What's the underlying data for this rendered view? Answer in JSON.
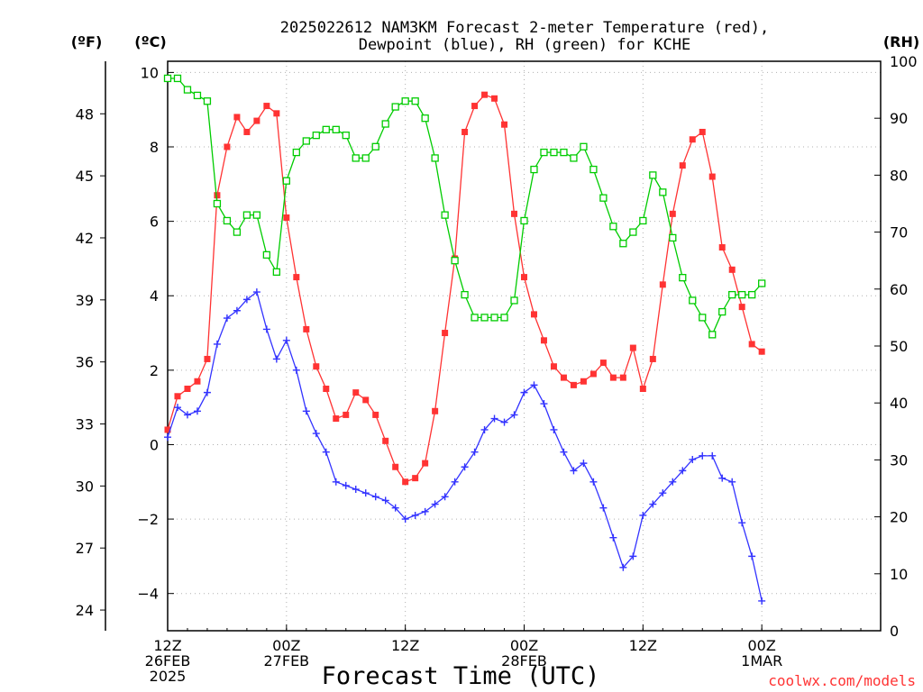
{
  "chart_data": {
    "type": "line",
    "title_lines": [
      "2025022612 NAM3KM Forecast 2-meter Temperature (red),",
      "Dewpoint (blue), RH (green) for KCHE"
    ],
    "xlabel": "Forecast Time (UTC)",
    "unit_labels": {
      "fahrenheit": "(ºF)",
      "celsius": "(ºC)",
      "rh": "(RH)"
    },
    "credit": "coolwx.com/models",
    "x_range_hours": [
      0,
      36
    ],
    "x_ticks": [
      {
        "hour": 0,
        "lines": [
          "12Z",
          "26FEB",
          "2025"
        ]
      },
      {
        "hour": 6,
        "lines": [
          "00Z",
          "27FEB"
        ]
      },
      {
        "hour": 12,
        "lines": [
          "12Z"
        ]
      },
      {
        "hour": 18,
        "lines": [
          "00Z",
          "28FEB"
        ]
      },
      {
        "hour": 24,
        "lines": [
          "12Z"
        ]
      },
      {
        "hour": 30,
        "lines": [
          "00Z",
          "1MAR"
        ]
      }
    ],
    "celsius_axis": {
      "range": [
        -5,
        10.3
      ],
      "ticks": [
        -4,
        -2,
        0,
        2,
        4,
        6,
        8,
        10
      ]
    },
    "fahrenheit_axis": {
      "ticks": [
        24,
        27,
        30,
        33,
        36,
        39,
        42,
        45,
        48
      ]
    },
    "rh_axis": {
      "range": [
        0,
        100
      ],
      "ticks": [
        0,
        10,
        20,
        30,
        40,
        50,
        60,
        70,
        80,
        90,
        100
      ]
    },
    "grid": true,
    "series": [
      {
        "name": "Temperature",
        "axis": "celsius",
        "color": "#ff3333",
        "marker": "filled-square",
        "x": [
          0,
          0.5,
          1,
          1.5,
          2,
          2.5,
          3,
          3.5,
          4,
          4.5,
          5,
          5.5,
          6,
          6.5,
          7,
          7.5,
          8,
          8.5,
          9,
          9.5,
          10,
          10.5,
          11,
          11.5,
          12,
          12.5,
          13,
          13.5,
          14,
          14.5,
          15,
          15.5,
          16,
          16.5,
          17,
          17.5,
          18,
          18.5,
          19,
          19.5,
          20,
          20.5,
          21,
          21.5,
          22,
          22.5,
          23,
          23.5,
          24,
          24.5,
          25,
          25.5,
          26,
          26.5,
          27,
          27.5,
          28,
          28.5,
          29,
          29.5,
          30
        ],
        "values": [
          0.4,
          1.3,
          1.5,
          1.7,
          2.3,
          6.7,
          8,
          8.8,
          8.4,
          8.7,
          9.1,
          8.9,
          6.1,
          4.5,
          3.1,
          2.1,
          1.5,
          0.7,
          0.8,
          1.4,
          1.2,
          0.8,
          0.1,
          -0.6,
          -1.0,
          -0.9,
          -0.5,
          0.9,
          3.0,
          5.0,
          8.4,
          9.1,
          9.4,
          9.3,
          8.6,
          6.2,
          4.5,
          3.5,
          2.8,
          2.1,
          1.8,
          1.6,
          1.7,
          1.9,
          2.2,
          1.8,
          1.8,
          2.6,
          1.5,
          2.3,
          4.3,
          6.2,
          7.5,
          8.2,
          8.4,
          7.2,
          5.3,
          4.7,
          3.7,
          2.7,
          2.5
        ]
      },
      {
        "name": "Dewpoint",
        "axis": "celsius",
        "color": "#3333ff",
        "marker": "plus",
        "x": [
          0,
          0.5,
          1,
          1.5,
          2,
          2.5,
          3,
          3.5,
          4,
          4.5,
          5,
          5.5,
          6,
          6.5,
          7,
          7.5,
          8,
          8.5,
          9,
          9.5,
          10,
          10.5,
          11,
          11.5,
          12,
          12.5,
          13,
          13.5,
          14,
          14.5,
          15,
          15.5,
          16,
          16.5,
          17,
          17.5,
          18,
          18.5,
          19,
          19.5,
          20,
          20.5,
          21,
          21.5,
          22,
          22.5,
          23,
          23.5,
          24,
          24.5,
          25,
          25.5,
          26,
          26.5,
          27,
          27.5,
          28,
          28.5,
          29,
          29.5,
          30
        ],
        "values": [
          0.2,
          1.0,
          0.8,
          0.9,
          1.4,
          2.7,
          3.4,
          3.6,
          3.9,
          4.1,
          3.1,
          2.3,
          2.8,
          2.0,
          0.9,
          0.3,
          -0.2,
          -1.0,
          -1.1,
          -1.2,
          -1.3,
          -1.4,
          -1.5,
          -1.7,
          -2.0,
          -1.9,
          -1.8,
          -1.6,
          -1.4,
          -1.0,
          -0.6,
          -0.2,
          0.4,
          0.7,
          0.6,
          0.8,
          1.4,
          1.6,
          1.1,
          0.4,
          -0.2,
          -0.7,
          -0.5,
          -1.0,
          -1.7,
          -2.5,
          -3.3,
          -3.0,
          -1.9,
          -1.6,
          -1.3,
          -1.0,
          -0.7,
          -0.4,
          -0.3,
          -0.3,
          -0.9,
          -1.0,
          -2.1,
          -3.0,
          -4.2
        ]
      },
      {
        "name": "RH",
        "axis": "rh",
        "color": "#00cc00",
        "marker": "open-square",
        "x": [
          0,
          0.5,
          1,
          1.5,
          2,
          2.5,
          3,
          3.5,
          4,
          4.5,
          5,
          5.5,
          6,
          6.5,
          7,
          7.5,
          8,
          8.5,
          9,
          9.5,
          10,
          10.5,
          11,
          11.5,
          12,
          12.5,
          13,
          13.5,
          14,
          14.5,
          15,
          15.5,
          16,
          16.5,
          17,
          17.5,
          18,
          18.5,
          19,
          19.5,
          20,
          20.5,
          21,
          21.5,
          22,
          22.5,
          23,
          23.5,
          24,
          24.5,
          25,
          25.5,
          26,
          26.5,
          27,
          27.5,
          28,
          28.5,
          29,
          29.5,
          30
        ],
        "values": [
          97,
          97,
          95,
          94,
          93,
          75,
          72,
          70,
          73,
          73,
          66,
          63,
          79,
          84,
          86,
          87,
          88,
          88,
          87,
          83,
          83,
          85,
          89,
          92,
          93,
          93,
          90,
          83,
          73,
          65,
          59,
          55,
          55,
          55,
          55,
          58,
          72,
          81,
          84,
          84,
          84,
          83,
          85,
          81,
          76,
          71,
          68,
          70,
          72,
          80,
          77,
          69,
          62,
          58,
          55,
          52,
          56,
          59,
          59,
          59,
          61
        ]
      }
    ]
  }
}
